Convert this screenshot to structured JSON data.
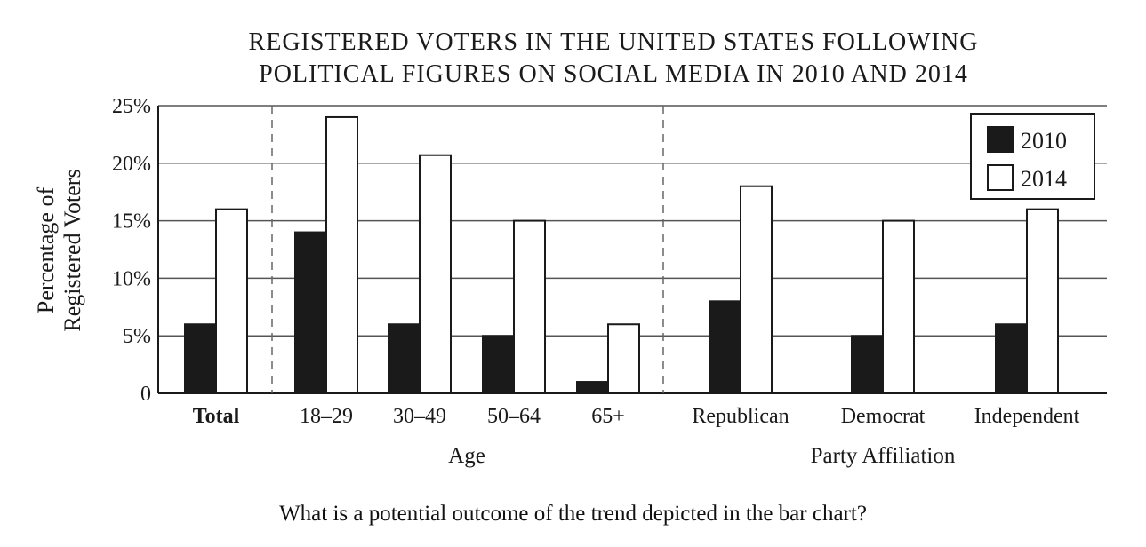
{
  "chart_data": {
    "type": "bar",
    "title": [
      "REGISTERED VOTERS IN THE UNITED STATES FOLLOWING",
      "POLITICAL FIGURES ON SOCIAL MEDIA IN 2010 AND 2014"
    ],
    "ylabel": [
      "Percentage of",
      "Registered Voters"
    ],
    "ylim": [
      0,
      25
    ],
    "yticks": [
      {
        "value": 0,
        "label": "0"
      },
      {
        "value": 5,
        "label": "5%"
      },
      {
        "value": 10,
        "label": "10%"
      },
      {
        "value": 15,
        "label": "15%"
      },
      {
        "value": 20,
        "label": "20%"
      },
      {
        "value": 25,
        "label": "25%"
      }
    ],
    "grid": true,
    "legend_position": "top-right",
    "categories": [
      "Total",
      "18–29",
      "30–49",
      "50–64",
      "65+",
      "Republican",
      "Democrat",
      "Independent"
    ],
    "category_groups": [
      {
        "label": "",
        "categories": [
          "Total"
        ]
      },
      {
        "label": "Age",
        "categories": [
          "18–29",
          "30–49",
          "50–64",
          "65+"
        ]
      },
      {
        "label": "Party Affiliation",
        "categories": [
          "Republican",
          "Democrat",
          "Independent"
        ]
      }
    ],
    "series": [
      {
        "name": "2010",
        "color": "#1a1a1a",
        "values": [
          6,
          14,
          6,
          5,
          1,
          8,
          5,
          6
        ]
      },
      {
        "name": "2014",
        "color": "#ffffff",
        "values": [
          16,
          24,
          20.7,
          15,
          6,
          18,
          15,
          16
        ]
      }
    ]
  },
  "question": "What is a potential outcome of the trend depicted in the bar chart?"
}
